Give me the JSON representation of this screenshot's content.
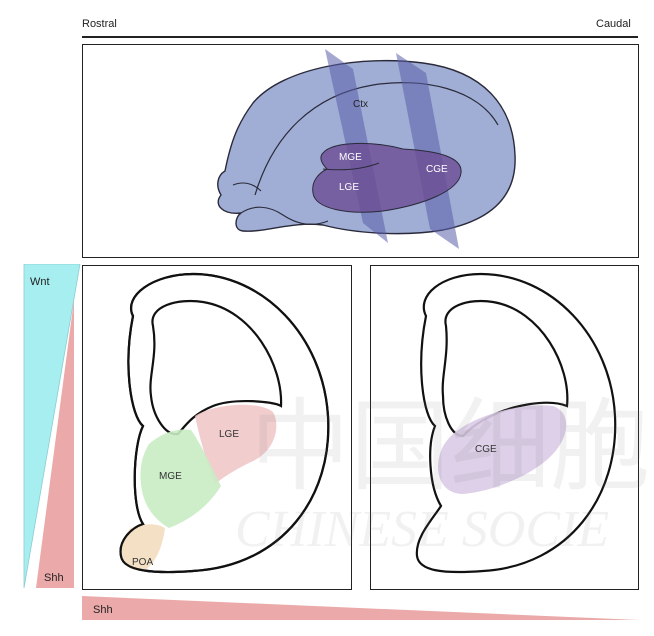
{
  "axis": {
    "left_label": "Rostral",
    "right_label": "Caudal"
  },
  "top_panel": {
    "labels": {
      "ctx": "Ctx",
      "mge": "MGE",
      "lge": "LGE",
      "cge": "CGE"
    }
  },
  "left_section": {
    "labels": {
      "lge": "LGE",
      "mge": "MGE",
      "poa": "POA"
    }
  },
  "right_section": {
    "labels": {
      "cge": "CGE"
    }
  },
  "gradients": {
    "wnt": "Wnt",
    "shh_vertical": "Shh",
    "shh_horizontal": "Shh"
  },
  "watermark": {
    "chinese": "中国细胞",
    "english": "CHINESE SOCIE"
  },
  "colors": {
    "brain_fill": "#8fa0cf",
    "plane_fill": "#5a5fa8",
    "ge_fill": "#6d4c93",
    "lge_pink": "#efc4c4",
    "mge_green": "#c9ecc4",
    "poa_beige": "#f3dfc2",
    "cge_purple": "#d9cbe6",
    "wnt_cyan": "#a7eef0",
    "shh_red": "#e9a0a0"
  }
}
